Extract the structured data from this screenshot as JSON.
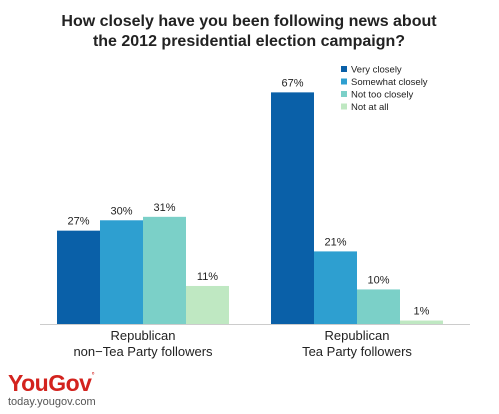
{
  "chart_data": {
    "type": "bar",
    "title_lines": [
      "How closely have you been following news about",
      "the 2012 presidential election campaign?"
    ],
    "groups": [
      {
        "label_lines": [
          "Republican",
          "non−Tea Party followers"
        ]
      },
      {
        "label_lines": [
          "Republican",
          "Tea Party followers"
        ]
      }
    ],
    "series": [
      {
        "name": "Very closely",
        "color": "#0a60a8",
        "values": [
          27,
          67
        ],
        "labels": [
          "27%",
          "67%"
        ]
      },
      {
        "name": "Somewhat closely",
        "color": "#2e9fd0",
        "values": [
          30,
          21
        ],
        "labels": [
          "30%",
          "21%"
        ]
      },
      {
        "name": "Not too closely",
        "color": "#7bd0c8",
        "values": [
          31,
          10
        ],
        "labels": [
          "31%",
          "10%"
        ]
      },
      {
        "name": "Not at all",
        "color": "#bfe8c2",
        "values": [
          11,
          1
        ],
        "labels": [
          "11%",
          "1%"
        ]
      }
    ],
    "ylim": [
      0,
      70
    ],
    "grid": false,
    "legend_position": "top-right"
  },
  "brand": {
    "logo": "YouGov",
    "url": "today.yougov.com",
    "color": "#d3231e"
  }
}
